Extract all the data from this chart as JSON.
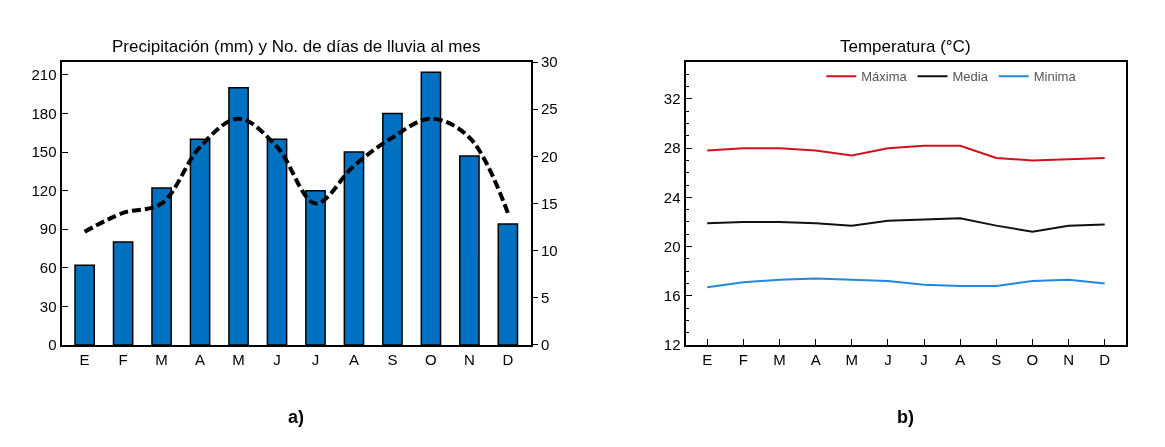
{
  "chart_data": [
    {
      "type": "bar",
      "title": "Precipitación (mm) y No. de días de lluvia al mes",
      "categories": [
        "E",
        "F",
        "M",
        "A",
        "M",
        "J",
        "J",
        "A",
        "S",
        "O",
        "N",
        "D"
      ],
      "series": [
        {
          "type": "bar",
          "color": "#0070c0",
          "values": [
            62,
            80,
            122,
            160,
            200,
            160,
            120,
            150,
            180,
            212,
            147,
            94
          ]
        },
        {
          "type": "line",
          "axis": "y2",
          "color": "#000000",
          "line_style": "dashed",
          "values": [
            12,
            14,
            15,
            21,
            24,
            21,
            15,
            19,
            22,
            24,
            22,
            14
          ]
        }
      ],
      "ylim": [
        0,
        220
      ],
      "yticks": [
        0,
        30,
        60,
        90,
        120,
        150,
        180,
        210
      ],
      "y2lim": [
        0,
        30
      ],
      "y2ticks": [
        0,
        5,
        10,
        15,
        20,
        25,
        30
      ],
      "legend": false,
      "annotations": [
        "a)"
      ]
    },
    {
      "type": "line",
      "title": "Temperatura (°C)",
      "categories": [
        "E",
        "F",
        "M",
        "A",
        "M",
        "J",
        "J",
        "A",
        "S",
        "O",
        "N",
        "D"
      ],
      "series": [
        {
          "name": "Máxima",
          "color": "#d0121b",
          "values": [
            27.8,
            28,
            28,
            27.8,
            27.4,
            28,
            28.2,
            28.2,
            27.2,
            27,
            27.1,
            27.2
          ]
        },
        {
          "name": "Media",
          "color": "#111111",
          "values": [
            21.9,
            22,
            22,
            21.9,
            21.7,
            22.1,
            22.2,
            22.3,
            21.7,
            21.2,
            21.7,
            21.8
          ]
        },
        {
          "name": "Minima",
          "color": "#2288dd",
          "values": [
            16.7,
            17.1,
            17.3,
            17.4,
            17.3,
            17.2,
            16.9,
            16.8,
            16.8,
            17.2,
            17.3,
            17.0
          ]
        }
      ],
      "ylim": [
        12,
        35
      ],
      "yticks": [
        12,
        16,
        20,
        24,
        28,
        32
      ],
      "legend": "top",
      "marker": "none",
      "annotations": [
        "b)"
      ]
    }
  ]
}
